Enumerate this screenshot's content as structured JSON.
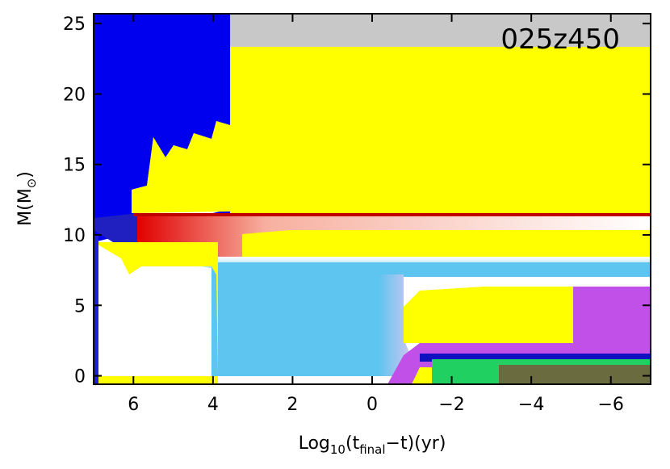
{
  "chart_data": {
    "type": "kippenhahn",
    "annotation": "025z450",
    "xlabel": [
      "Log",
      "10",
      "(t",
      "final",
      "−t)(yr)"
    ],
    "ylabel": [
      "M(M",
      "⊙",
      ")"
    ],
    "xlim": [
      7,
      -7
    ],
    "ylim": [
      -0.6,
      25.7
    ],
    "xticks": [
      6,
      4,
      2,
      0,
      {
        "value": -2,
        "label": "−2"
      },
      {
        "value": -4,
        "label": "−4"
      },
      {
        "value": -6,
        "label": "−6"
      }
    ],
    "yticks": [
      0,
      5,
      10,
      15,
      20,
      25
    ]
  }
}
